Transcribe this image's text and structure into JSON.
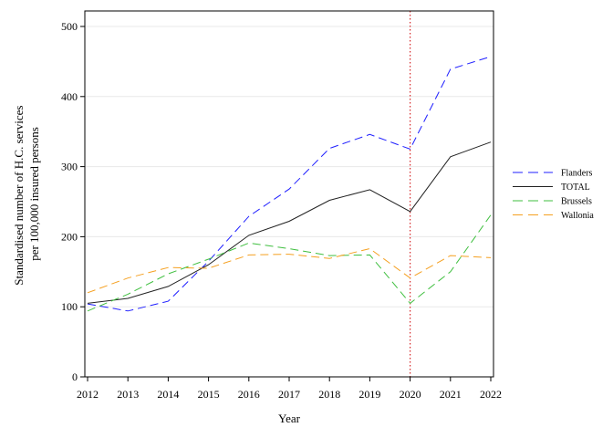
{
  "chart_data": {
    "type": "line",
    "x": [
      2012,
      2013,
      2014,
      2015,
      2016,
      2017,
      2018,
      2019,
      2020,
      2021,
      2022
    ],
    "xlabel": "Year",
    "ylabel_lines": [
      "Standardised number of H.C. services",
      "per 100,000 insured persons"
    ],
    "ylim": [
      0,
      500
    ],
    "yticks": [
      0,
      100,
      200,
      300,
      400,
      500
    ],
    "grid": "horizontal",
    "reference_line": {
      "x": 2020,
      "style": "dotted",
      "color": "#d62728"
    },
    "legend_position": "right",
    "series": [
      {
        "name": "Flanders",
        "color": "#1f1fff",
        "dash": "dash",
        "values": [
          104,
          94,
          108,
          165,
          229,
          268,
          326,
          346,
          325,
          439,
          457
        ]
      },
      {
        "name": "TOTAL",
        "color": "#222222",
        "dash": "solid",
        "values": [
          105,
          112,
          129,
          160,
          202,
          222,
          252,
          267,
          236,
          314,
          335
        ]
      },
      {
        "name": "Brussels",
        "color": "#3fbf3f",
        "dash": "dash",
        "values": [
          94,
          118,
          147,
          168,
          191,
          183,
          173,
          174,
          105,
          150,
          231
        ]
      },
      {
        "name": "Wallonia",
        "color": "#f5a020",
        "dash": "dash",
        "values": [
          120,
          141,
          156,
          155,
          174,
          175,
          169,
          183,
          141,
          173,
          170
        ]
      }
    ]
  }
}
